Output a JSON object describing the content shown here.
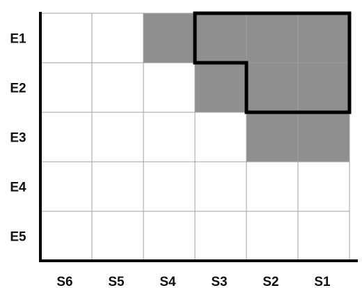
{
  "grid": {
    "row_labels": [
      "E1",
      "E2",
      "E3",
      "E4",
      "E5"
    ],
    "column_labels": [
      "S6",
      "S5",
      "S4",
      "S3",
      "S2",
      "S1"
    ],
    "shaded_cells": {
      "E1": [
        "S4",
        "S3",
        "S2",
        "S1"
      ],
      "E2": [
        "S3",
        "S2",
        "S1"
      ],
      "E3": [
        "S2",
        "S1"
      ],
      "E4": [],
      "E5": []
    },
    "highlighted_region": {
      "E1": [
        "S3",
        "S2",
        "S1"
      ],
      "E2": [
        "S2",
        "S1"
      ]
    }
  },
  "colors": {
    "shaded_cell": "#8f8f8f",
    "empty_cell": "#ffffff",
    "grid_line": "#a0a0a0",
    "axis": "#000000",
    "highlight_outline": "#000000",
    "label": "#111111"
  }
}
